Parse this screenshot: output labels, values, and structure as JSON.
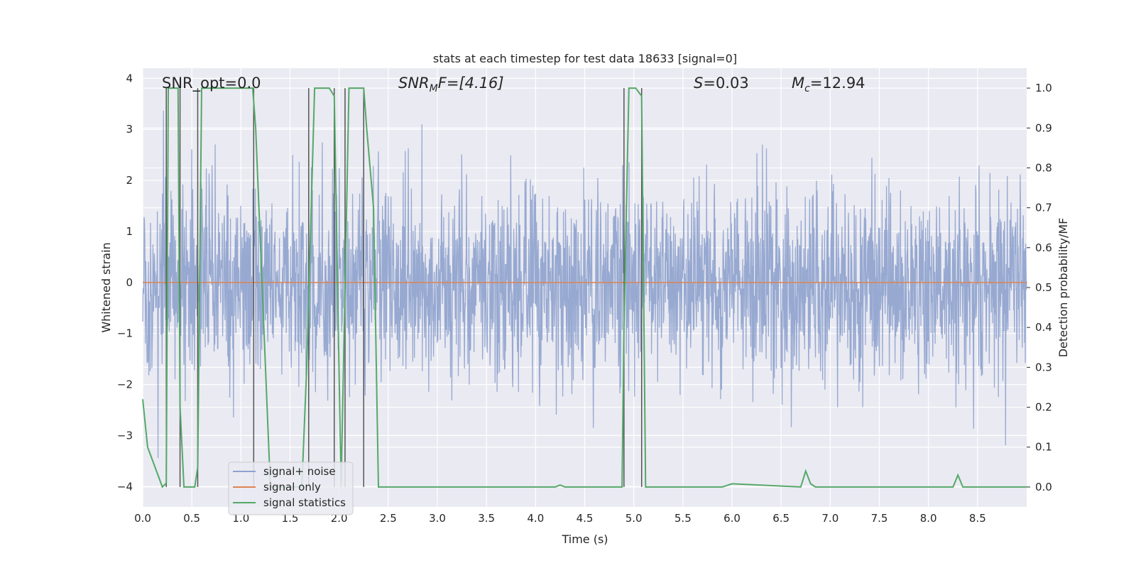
{
  "chart_data": {
    "type": "line",
    "title": "stats at each timestep for test data 18633 [signal=0]",
    "xlabel": "Time (s)",
    "ylabel_left": "Whitened strain",
    "ylabel_right": "Detection probability/MF",
    "xlim": [
      0.0,
      9.0
    ],
    "ylim_left": [
      -4.4,
      4.2
    ],
    "ylim_right": [
      -0.05,
      1.05
    ],
    "x_ticks": [
      "0.0",
      "0.5",
      "1.0",
      "1.5",
      "2.0",
      "2.5",
      "3.0",
      "3.5",
      "4.0",
      "4.5",
      "5.0",
      "5.5",
      "6.0",
      "6.5",
      "7.0",
      "7.5",
      "8.0",
      "8.5"
    ],
    "y_ticks_left": [
      "4",
      "3",
      "2",
      "1",
      "0",
      "−1",
      "−2",
      "−3",
      "−4"
    ],
    "y_ticks_right": [
      "1.0",
      "0.9",
      "0.8",
      "0.7",
      "0.6",
      "0.5",
      "0.4",
      "0.3",
      "0.2",
      "0.1",
      "0.0"
    ],
    "grid": true,
    "annotations": {
      "snr_opt": "SNR_opt=0.0",
      "snr_mf_main": "SNR",
      "snr_mf_sub": "M",
      "snr_mf_rest": "F=[4.16]",
      "s_italic": "S",
      "s_value": "=0.03",
      "mc_main": "M",
      "mc_sub": "c",
      "mc_value": "=12.94"
    },
    "legend": {
      "placement": "lower-left",
      "entries": [
        "signal+ noise",
        "signal only",
        "signal statistics"
      ]
    },
    "colors": {
      "noise": "#8ea2cd",
      "signal": "#dd8452",
      "stats": "#55a868",
      "markers": "#555555",
      "background": "#eaeaf2"
    },
    "series": [
      {
        "name": "signal+ noise",
        "axis": "left",
        "style": "dense noise trace",
        "sigma": 0.95,
        "x_range": [
          0.0,
          9.0
        ]
      },
      {
        "name": "signal only",
        "axis": "left",
        "x": [
          0.0,
          9.0
        ],
        "y": [
          0.0,
          0.0
        ]
      },
      {
        "name": "signal statistics",
        "axis": "right",
        "x": [
          0.0,
          0.05,
          0.2,
          0.24,
          0.26,
          0.3,
          0.36,
          0.38,
          0.42,
          0.48,
          0.53,
          0.56,
          0.6,
          0.63,
          1.12,
          1.15,
          1.3,
          1.62,
          1.67,
          1.75,
          1.9,
          1.95,
          2.02,
          2.1,
          2.25,
          2.28,
          2.35,
          2.4,
          2.5,
          4.2,
          4.25,
          4.3,
          4.88,
          4.9,
          4.95,
          5.02,
          5.08,
          5.12,
          5.8,
          5.9,
          6.0,
          6.7,
          6.75,
          6.8,
          6.85,
          8.2,
          8.25,
          8.3,
          8.35,
          9.0
        ],
        "y": [
          0.22,
          0.1,
          0.0,
          0.01,
          1.0,
          1.0,
          1.0,
          0.2,
          0.0,
          0.0,
          0.0,
          0.05,
          1.0,
          1.0,
          1.0,
          0.9,
          0.0,
          0.0,
          0.3,
          1.0,
          1.0,
          0.98,
          0.0,
          1.0,
          1.0,
          0.9,
          0.7,
          0.0,
          0.0,
          0.0,
          0.005,
          0.0,
          0.0,
          0.4,
          1.0,
          1.0,
          0.98,
          0.0,
          0.0,
          0.0,
          0.008,
          0.0,
          0.04,
          0.008,
          0.0,
          0.0,
          0.0,
          0.03,
          0.0,
          0.0
        ]
      }
    ],
    "marker_times": [
      0.24,
      0.38,
      0.56,
      1.13,
      1.69,
      1.95,
      2.06,
      2.25,
      4.9,
      5.08
    ]
  }
}
